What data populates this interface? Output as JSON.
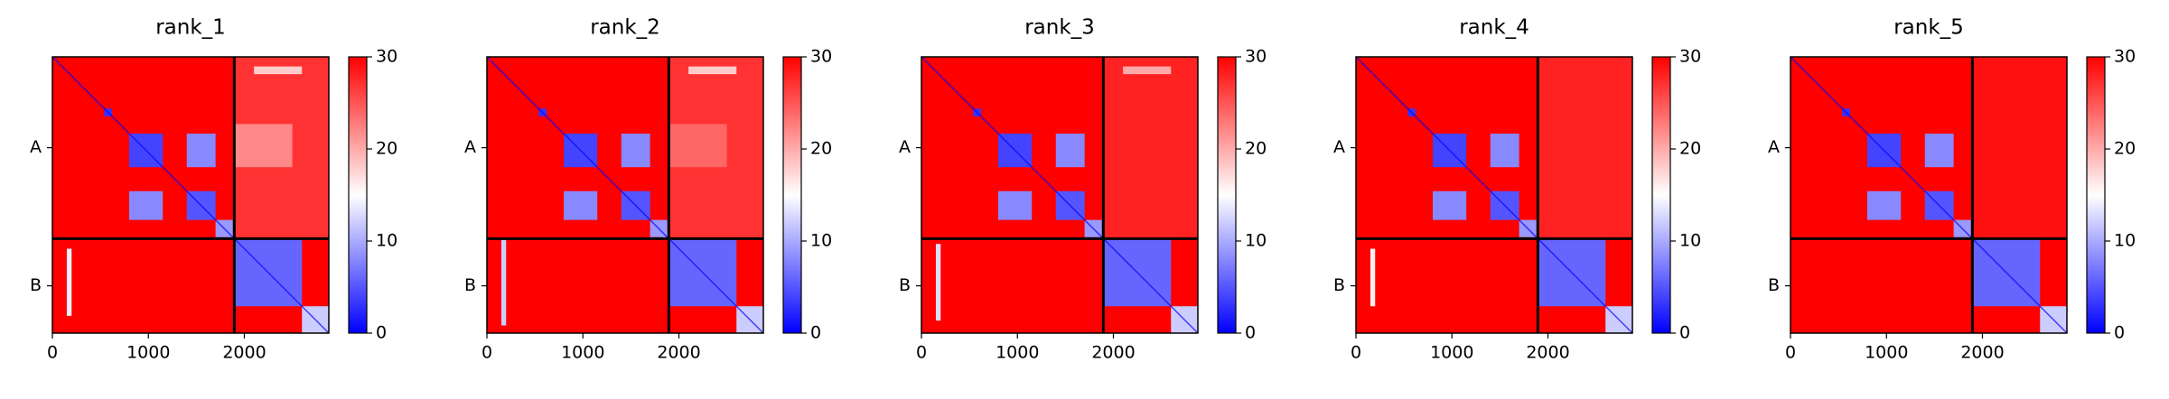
{
  "chart_data": [
    {
      "type": "heatmap",
      "title": "rank_1",
      "xlim": [
        0,
        2880
      ],
      "ylim": [
        2880,
        0
      ],
      "xticks": [
        0,
        1000,
        2000
      ],
      "yticks": [
        {
          "value": 947,
          "label": "A"
        },
        {
          "value": 2387,
          "label": "B"
        }
      ],
      "boundary": 1895,
      "background": 30,
      "diagonal": 0,
      "cmap": [
        "#0000ff",
        "#ffffff",
        "#ff0000"
      ],
      "clim": [
        0,
        30
      ],
      "cticks": [
        0,
        10,
        20,
        30
      ],
      "blocks": [
        [
          1900,
          2880,
          0,
          1895,
          27
        ],
        [
          540,
          620,
          540,
          620,
          3
        ],
        [
          800,
          1150,
          800,
          1150,
          4
        ],
        [
          1400,
          1700,
          1400,
          1700,
          5
        ],
        [
          800,
          1150,
          1400,
          1700,
          8
        ],
        [
          1400,
          1700,
          800,
          1150,
          8
        ],
        [
          1700,
          1880,
          1700,
          1880,
          9
        ],
        [
          1900,
          2600,
          1900,
          2600,
          6
        ],
        [
          2600,
          2880,
          2600,
          2880,
          12
        ],
        [
          150,
          200,
          2000,
          2700,
          14
        ],
        [
          1900,
          2500,
          700,
          1150,
          22
        ],
        [
          2100,
          2600,
          100,
          180,
          18
        ]
      ]
    },
    {
      "type": "heatmap",
      "title": "rank_2",
      "xlim": [
        0,
        2880
      ],
      "ylim": [
        2880,
        0
      ],
      "xticks": [
        0,
        1000,
        2000
      ],
      "yticks": [
        {
          "value": 947,
          "label": "A"
        },
        {
          "value": 2387,
          "label": "B"
        }
      ],
      "boundary": 1895,
      "background": 30,
      "diagonal": 0,
      "cmap": [
        "#0000ff",
        "#ffffff",
        "#ff0000"
      ],
      "clim": [
        0,
        30
      ],
      "cticks": [
        0,
        10,
        20,
        30
      ],
      "blocks": [
        [
          1900,
          2880,
          0,
          1895,
          27
        ],
        [
          540,
          620,
          540,
          620,
          3
        ],
        [
          800,
          1150,
          800,
          1150,
          4
        ],
        [
          1400,
          1700,
          1400,
          1700,
          5
        ],
        [
          800,
          1150,
          1400,
          1700,
          8
        ],
        [
          1400,
          1700,
          800,
          1150,
          8
        ],
        [
          1700,
          1880,
          1700,
          1880,
          9
        ],
        [
          1900,
          2600,
          1900,
          2600,
          6
        ],
        [
          2600,
          2880,
          2600,
          2880,
          12
        ],
        [
          150,
          200,
          1900,
          2800,
          12
        ],
        [
          1900,
          2500,
          700,
          1150,
          24
        ],
        [
          2100,
          2600,
          100,
          180,
          18
        ]
      ]
    },
    {
      "type": "heatmap",
      "title": "rank_3",
      "xlim": [
        0,
        2880
      ],
      "ylim": [
        2880,
        0
      ],
      "xticks": [
        0,
        1000,
        2000
      ],
      "yticks": [
        {
          "value": 947,
          "label": "A"
        },
        {
          "value": 2387,
          "label": "B"
        }
      ],
      "boundary": 1895,
      "background": 30,
      "diagonal": 0,
      "cmap": [
        "#0000ff",
        "#ffffff",
        "#ff0000"
      ],
      "clim": [
        0,
        30
      ],
      "cticks": [
        0,
        10,
        20,
        30
      ],
      "blocks": [
        [
          1900,
          2880,
          0,
          1895,
          28
        ],
        [
          540,
          620,
          540,
          620,
          3
        ],
        [
          800,
          1150,
          800,
          1150,
          4
        ],
        [
          1400,
          1700,
          1400,
          1700,
          5
        ],
        [
          800,
          1150,
          1400,
          1700,
          8
        ],
        [
          1400,
          1700,
          800,
          1150,
          8
        ],
        [
          1700,
          1880,
          1700,
          1880,
          9
        ],
        [
          1900,
          2600,
          1900,
          2600,
          6
        ],
        [
          2600,
          2880,
          2600,
          2880,
          12
        ],
        [
          150,
          200,
          1950,
          2750,
          13
        ],
        [
          2100,
          2600,
          100,
          180,
          20
        ]
      ]
    },
    {
      "type": "heatmap",
      "title": "rank_4",
      "xlim": [
        0,
        2880
      ],
      "ylim": [
        2880,
        0
      ],
      "xticks": [
        0,
        1000,
        2000
      ],
      "yticks": [
        {
          "value": 947,
          "label": "A"
        },
        {
          "value": 2387,
          "label": "B"
        }
      ],
      "boundary": 1895,
      "background": 30,
      "diagonal": 0,
      "cmap": [
        "#0000ff",
        "#ffffff",
        "#ff0000"
      ],
      "clim": [
        0,
        30
      ],
      "cticks": [
        0,
        10,
        20,
        30
      ],
      "blocks": [
        [
          1900,
          2880,
          0,
          1895,
          28
        ],
        [
          540,
          620,
          540,
          620,
          3
        ],
        [
          800,
          1150,
          800,
          1150,
          4
        ],
        [
          1400,
          1700,
          1400,
          1700,
          5
        ],
        [
          800,
          1150,
          1400,
          1700,
          8
        ],
        [
          1400,
          1700,
          800,
          1150,
          8
        ],
        [
          1700,
          1880,
          1700,
          1880,
          9
        ],
        [
          1900,
          2600,
          1900,
          2600,
          6
        ],
        [
          2600,
          2880,
          2600,
          2880,
          12
        ],
        [
          150,
          200,
          2000,
          2600,
          16
        ]
      ]
    },
    {
      "type": "heatmap",
      "title": "rank_5",
      "xlim": [
        0,
        2880
      ],
      "ylim": [
        2880,
        0
      ],
      "xticks": [
        0,
        1000,
        2000
      ],
      "yticks": [
        {
          "value": 947,
          "label": "A"
        },
        {
          "value": 2387,
          "label": "B"
        }
      ],
      "boundary": 1895,
      "background": 30,
      "diagonal": 0,
      "cmap": [
        "#0000ff",
        "#ffffff",
        "#ff0000"
      ],
      "clim": [
        0,
        30
      ],
      "cticks": [
        0,
        10,
        20,
        30
      ],
      "blocks": [
        [
          1900,
          2880,
          0,
          1895,
          29
        ],
        [
          540,
          620,
          540,
          620,
          3
        ],
        [
          800,
          1150,
          800,
          1150,
          4
        ],
        [
          1400,
          1700,
          1400,
          1700,
          5
        ],
        [
          800,
          1150,
          1400,
          1700,
          8
        ],
        [
          1400,
          1700,
          800,
          1150,
          8
        ],
        [
          1700,
          1880,
          1700,
          1880,
          9
        ],
        [
          1900,
          2600,
          1900,
          2600,
          6
        ],
        [
          2600,
          2880,
          2600,
          2880,
          12
        ]
      ]
    }
  ]
}
